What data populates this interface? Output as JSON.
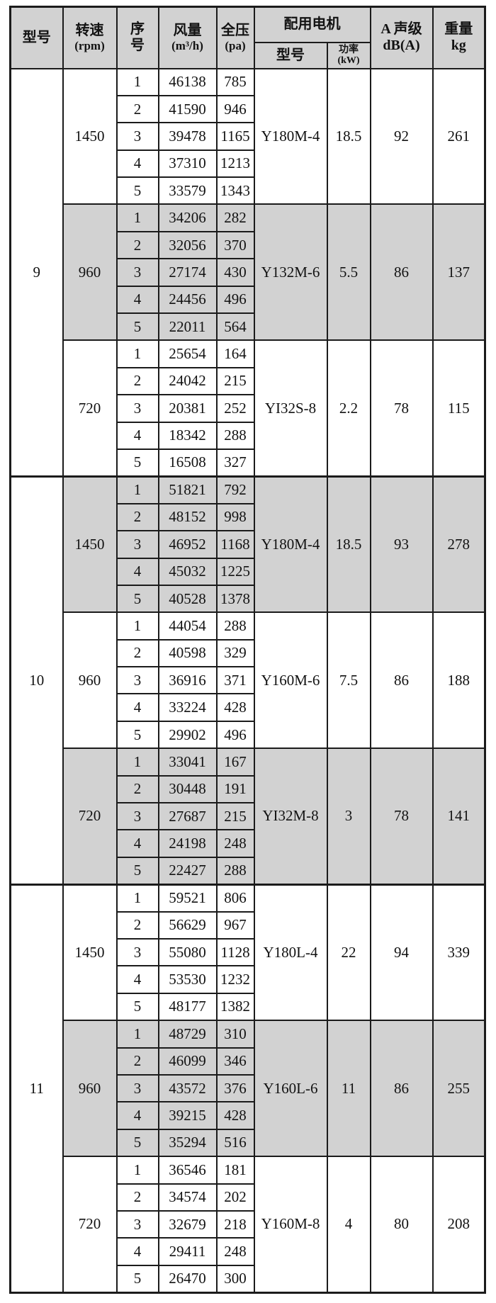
{
  "colors": {
    "shade_bg": "#d2d2d2",
    "border": "#1b1b1b"
  },
  "table": {
    "header": {
      "model": "型号",
      "speed_line1": "转速",
      "speed_line2": "(rpm)",
      "serial_line1": "序",
      "serial_line2": "号",
      "airflow_line1": "风量",
      "airflow_line2": "(m³/h)",
      "pressure_line1": "全压",
      "pressure_line2": "(pa)",
      "motor_group": "配用电机",
      "motor_model": "型号",
      "motor_power_line1": "功率",
      "motor_power_line2": "(kW)",
      "noise_line1": "A 声级",
      "noise_line2": "dB(A)",
      "weight_line1": "重量",
      "weight_line2": "kg"
    },
    "models": [
      {
        "model": "9",
        "blocks": [
          {
            "speed": "1450",
            "shaded": false,
            "rows": [
              [
                1,
                46138,
                785
              ],
              [
                2,
                41590,
                946
              ],
              [
                3,
                39478,
                1165
              ],
              [
                4,
                37310,
                1213
              ],
              [
                5,
                33579,
                1343
              ]
            ],
            "motor_model": "Y180M-4",
            "power": "18.5",
            "noise": "92",
            "weight": "261"
          },
          {
            "speed": "960",
            "shaded": true,
            "rows": [
              [
                1,
                34206,
                282
              ],
              [
                2,
                32056,
                370
              ],
              [
                3,
                27174,
                430
              ],
              [
                4,
                24456,
                496
              ],
              [
                5,
                22011,
                564
              ]
            ],
            "motor_model": "Y132M-6",
            "power": "5.5",
            "noise": "86",
            "weight": "137"
          },
          {
            "speed": "720",
            "shaded": false,
            "rows": [
              [
                1,
                25654,
                164
              ],
              [
                2,
                24042,
                215
              ],
              [
                3,
                20381,
                252
              ],
              [
                4,
                18342,
                288
              ],
              [
                5,
                16508,
                327
              ]
            ],
            "motor_model": "YI32S-8",
            "power": "2.2",
            "noise": "78",
            "weight": "115"
          }
        ]
      },
      {
        "model": "10",
        "blocks": [
          {
            "speed": "1450",
            "shaded": true,
            "rows": [
              [
                1,
                51821,
                792
              ],
              [
                2,
                48152,
                998
              ],
              [
                3,
                46952,
                1168
              ],
              [
                4,
                45032,
                1225
              ],
              [
                5,
                40528,
                1378
              ]
            ],
            "motor_model": "Y180M-4",
            "power": "18.5",
            "noise": "93",
            "weight": "278"
          },
          {
            "speed": "960",
            "shaded": false,
            "rows": [
              [
                1,
                44054,
                288
              ],
              [
                2,
                40598,
                329
              ],
              [
                3,
                36916,
                371
              ],
              [
                4,
                33224,
                428
              ],
              [
                5,
                29902,
                496
              ]
            ],
            "motor_model": "Y160M-6",
            "power": "7.5",
            "noise": "86",
            "weight": "188"
          },
          {
            "speed": "720",
            "shaded": true,
            "rows": [
              [
                1,
                33041,
                167
              ],
              [
                2,
                30448,
                191
              ],
              [
                3,
                27687,
                215
              ],
              [
                4,
                24198,
                248
              ],
              [
                5,
                22427,
                288
              ]
            ],
            "motor_model": "YI32M-8",
            "power": "3",
            "noise": "78",
            "weight": "141"
          }
        ]
      },
      {
        "model": "11",
        "blocks": [
          {
            "speed": "1450",
            "shaded": false,
            "rows": [
              [
                1,
                59521,
                806
              ],
              [
                2,
                56629,
                967
              ],
              [
                3,
                55080,
                1128
              ],
              [
                4,
                53530,
                1232
              ],
              [
                5,
                48177,
                1382
              ]
            ],
            "motor_model": "Y180L-4",
            "power": "22",
            "noise": "94",
            "weight": "339"
          },
          {
            "speed": "960",
            "shaded": true,
            "rows": [
              [
                1,
                48729,
                310
              ],
              [
                2,
                46099,
                346
              ],
              [
                3,
                43572,
                376
              ],
              [
                4,
                39215,
                428
              ],
              [
                5,
                35294,
                516
              ]
            ],
            "motor_model": "Y160L-6",
            "power": "11",
            "noise": "86",
            "weight": "255"
          },
          {
            "speed": "720",
            "shaded": false,
            "rows": [
              [
                1,
                36546,
                181
              ],
              [
                2,
                34574,
                202
              ],
              [
                3,
                32679,
                218
              ],
              [
                4,
                29411,
                248
              ],
              [
                5,
                26470,
                300
              ]
            ],
            "motor_model": "Y160M-8",
            "power": "4",
            "noise": "80",
            "weight": "208"
          }
        ]
      }
    ]
  }
}
